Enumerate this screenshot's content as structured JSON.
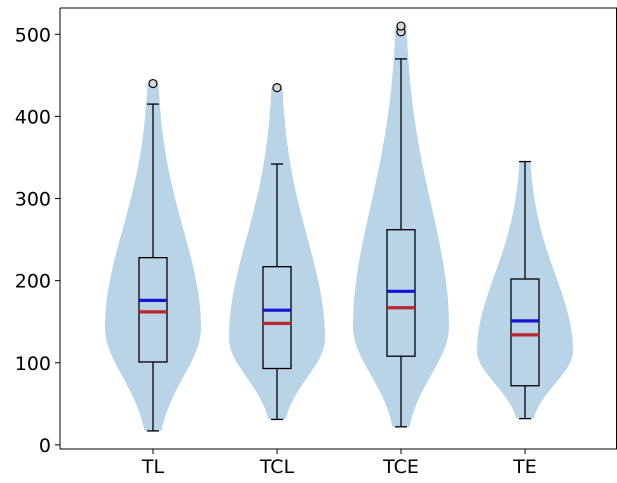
{
  "chart_data": {
    "type": "violin+box",
    "title": "",
    "xlabel": "",
    "ylabel": "",
    "categories": [
      "TL",
      "TCL",
      "TCE",
      "TE"
    ],
    "ylim": [
      -5,
      532
    ],
    "yticks": [
      0,
      100,
      200,
      300,
      400,
      500
    ],
    "grid": false,
    "series": [
      {
        "category": "TL",
        "min": 17,
        "q1": 101,
        "median": 162,
        "mean": 176,
        "q3": 228,
        "max": 415,
        "outliers": [
          440
        ],
        "violin_range": [
          17,
          440
        ]
      },
      {
        "category": "TCL",
        "min": 31,
        "q1": 93,
        "median": 148,
        "mean": 164,
        "q3": 217,
        "max": 342,
        "outliers": [
          435
        ],
        "violin_range": [
          31,
          435
        ]
      },
      {
        "category": "TCE",
        "min": 22,
        "q1": 108,
        "median": 167,
        "mean": 187,
        "q3": 262,
        "max": 470,
        "outliers": [
          503,
          510
        ],
        "violin_range": [
          22,
          510
        ]
      },
      {
        "category": "TE",
        "min": 32,
        "q1": 72,
        "median": 134,
        "mean": 151,
        "q3": 202,
        "max": 345,
        "outliers": [],
        "violin_range": [
          32,
          345
        ]
      }
    ],
    "colors": {
      "violin": "#b9d3e7",
      "box": "#000000",
      "median": "#b8272c",
      "mean": "#1414d4",
      "outlier_edge": "#000000",
      "outlier_fill": "#d8d8d8",
      "axis": "#000000"
    }
  }
}
